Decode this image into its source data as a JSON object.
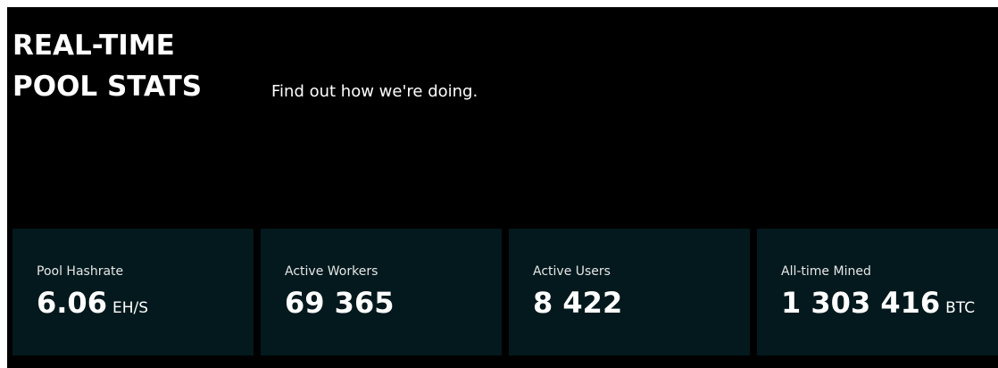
{
  "header": {
    "title": "REAL-TIME\nPOOL STATS",
    "subtitle": "Find out how we're doing."
  },
  "stats": [
    {
      "label": "Pool Hashrate",
      "value": "6.06",
      "unit": "EH/S"
    },
    {
      "label": "Active Workers",
      "value": "69 365"
    },
    {
      "label": "Active Users",
      "value": "8 422"
    },
    {
      "label": "All-time Mined",
      "value": "1 303 416",
      "unit": "BTC"
    }
  ]
}
